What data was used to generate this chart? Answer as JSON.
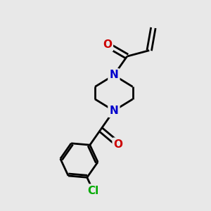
{
  "bg_color": "#e8e8e8",
  "bond_color": "#000000",
  "N_color": "#0000cc",
  "O_color": "#cc0000",
  "Cl_color": "#00aa00",
  "line_width": 2.0,
  "font_size_atom": 11,
  "fig_size": [
    3.0,
    3.0
  ],
  "dpi": 100,
  "xlim": [
    0,
    10
  ],
  "ylim": [
    0,
    10
  ]
}
